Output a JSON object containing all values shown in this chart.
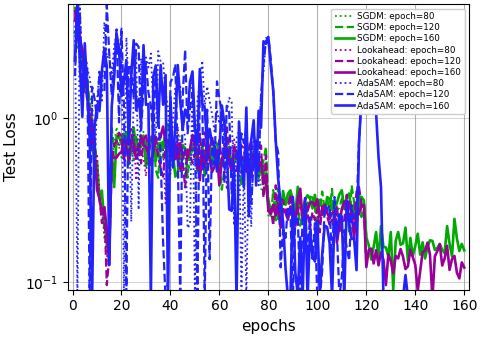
{
  "xlabel": "epochs",
  "ylabel": "Test Loss",
  "xlim": [
    -2,
    162
  ],
  "ylim_log": [
    0.09,
    5.0
  ],
  "xticks": [
    0,
    20,
    40,
    60,
    80,
    100,
    120,
    140,
    160
  ],
  "colors": {
    "sgdm": "#00aa00",
    "lookahead": "#990099",
    "adasam": "#2222ff"
  },
  "seed": 7
}
